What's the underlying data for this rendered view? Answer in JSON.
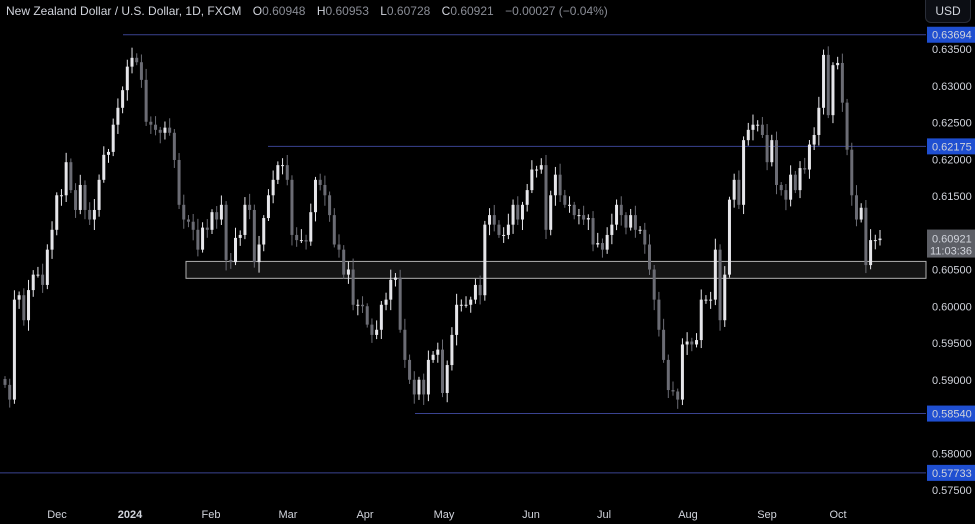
{
  "header": {
    "symbol": "New Zealand Dollar / U.S. Dollar, 1D, FXCM",
    "open_label": "O",
    "open": "0.60948",
    "high_label": "H",
    "high": "0.60953",
    "low_label": "L",
    "low": "0.60728",
    "close_label": "C",
    "close": "0.60921",
    "change": "−0.00027 (−0.04%)"
  },
  "currency_button": "USD",
  "colors": {
    "background": "#000000",
    "up_candle": "#e6e6ea",
    "down_candle": "#6b6c74",
    "level_line": "#3a4390",
    "level_label": "#1f4fd1",
    "zone_border": "#b0b0b0",
    "zone_fill": "#141414",
    "price_label": "#5d5f66"
  },
  "chart_data": {
    "type": "candlestick",
    "title": "New Zealand Dollar / U.S. Dollar, 1D, FXCM",
    "ylim": [
      0.5735,
      0.642
    ],
    "price_ticks": [
      "0.63500",
      "0.63000",
      "0.62500",
      "0.62000",
      "0.61500",
      "0.60500",
      "0.60000",
      "0.59500",
      "0.59000",
      "0.58000",
      "0.57500"
    ],
    "time_ticks": [
      {
        "label": "Dec",
        "bold": false
      },
      {
        "label": "2024",
        "bold": true
      },
      {
        "label": "Feb",
        "bold": false
      },
      {
        "label": "Mar",
        "bold": false
      },
      {
        "label": "Apr",
        "bold": false
      },
      {
        "label": "May",
        "bold": false
      },
      {
        "label": "Jun",
        "bold": false
      },
      {
        "label": "Jul",
        "bold": false
      },
      {
        "label": "Aug",
        "bold": false
      },
      {
        "label": "Sep",
        "bold": false
      },
      {
        "label": "Oct",
        "bold": false
      }
    ],
    "closes": [
      0.5893,
      0.5873,
      0.6009,
      0.6015,
      0.5981,
      0.6022,
      0.6043,
      0.6043,
      0.6029,
      0.6077,
      0.6104,
      0.6151,
      0.6151,
      0.6196,
      0.6158,
      0.6131,
      0.6165,
      0.6131,
      0.6118,
      0.6131,
      0.6172,
      0.6206,
      0.621,
      0.6247,
      0.627,
      0.6294,
      0.6326,
      0.6338,
      0.6332,
      0.6308,
      0.6251,
      0.6247,
      0.624,
      0.6236,
      0.6243,
      0.6236,
      0.6199,
      0.6138,
      0.6118,
      0.6115,
      0.6104,
      0.6077,
      0.6107,
      0.6104,
      0.6128,
      0.6118,
      0.6138,
      0.6063,
      0.606,
      0.6093,
      0.6097,
      0.6138,
      0.6131,
      0.606,
      0.6084,
      0.612,
      0.6151,
      0.6172,
      0.6192,
      0.6192,
      0.6172,
      0.6097,
      0.609,
      0.609,
      0.6088,
      0.6128,
      0.6172,
      0.6165,
      0.6151,
      0.6124,
      0.6084,
      0.6077,
      0.6043,
      0.605,
      0.6002,
      0.6002,
      0.6,
      0.5975,
      0.5961,
      0.5968,
      0.6002,
      0.6009,
      0.6036,
      0.6039,
      0.5968,
      0.5927,
      0.59,
      0.588,
      0.59,
      0.588,
      0.5927,
      0.5934,
      0.5941,
      0.5882,
      0.592,
      0.5961,
      0.6002,
      0.6002,
      0.6002,
      0.6009,
      0.6029,
      0.6015,
      0.6111,
      0.6124,
      0.6111,
      0.6097,
      0.6097,
      0.6111,
      0.6138,
      0.6118,
      0.6138,
      0.6158,
      0.6186,
      0.6186,
      0.6192,
      0.6104,
      0.6151,
      0.6179,
      0.6151,
      0.6138,
      0.6138,
      0.6124,
      0.6124,
      0.6118,
      0.612,
      0.6084,
      0.6086,
      0.6077,
      0.6097,
      0.6111,
      0.6138,
      0.6124,
      0.6107,
      0.6124,
      0.6104,
      0.6104,
      0.6084,
      0.605,
      0.6009,
      0.5968,
      0.5927,
      0.5886,
      0.5884,
      0.5873,
      0.5948,
      0.5952,
      0.5948,
      0.5954,
      0.6009,
      0.6009,
      0.6009,
      0.6077,
      0.5981,
      0.6043,
      0.6145,
      0.6172,
      0.6138,
      0.6226,
      0.624,
      0.6247,
      0.6247,
      0.6233,
      0.6196,
      0.6226,
      0.6165,
      0.6158,
      0.6145,
      0.6179,
      0.6158,
      0.6188,
      0.6186,
      0.622,
      0.6233,
      0.627,
      0.6342,
      0.626,
      0.6328,
      0.6331,
      0.6277,
      0.6213,
      0.6151,
      0.6118,
      0.6134,
      0.6056,
      0.609,
      0.609,
      0.60921
    ],
    "levels": [
      {
        "price": 0.63694,
        "label": "0.63694"
      },
      {
        "price": 0.62175,
        "label": "0.62175"
      },
      {
        "price": 0.5854,
        "label": "0.58540"
      },
      {
        "price": 0.57733,
        "label": "0.57733"
      }
    ],
    "zone": {
      "top": 0.6061,
      "bottom": 0.6038
    },
    "last_price": {
      "label": "0.60921",
      "price": 0.60921,
      "countdown": "11:03:36"
    }
  }
}
